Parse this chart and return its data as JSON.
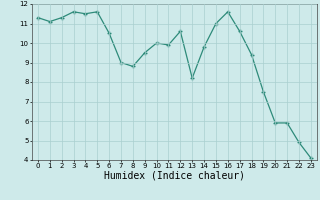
{
  "x": [
    0,
    1,
    2,
    3,
    4,
    5,
    6,
    7,
    8,
    9,
    10,
    11,
    12,
    13,
    14,
    15,
    16,
    17,
    18,
    19,
    20,
    21,
    22,
    23
  ],
  "y": [
    11.3,
    11.1,
    11.3,
    11.6,
    11.5,
    11.6,
    10.5,
    9.0,
    8.8,
    9.5,
    10.0,
    9.9,
    10.6,
    8.2,
    9.8,
    11.0,
    11.6,
    10.6,
    9.4,
    7.5,
    5.9,
    5.9,
    4.9,
    4.1
  ],
  "line_color": "#2e8b7a",
  "marker": "+",
  "marker_size": 3,
  "marker_lw": 1.0,
  "background_color": "#ceeaea",
  "grid_color": "#aacfcf",
  "xlabel": "Humidex (Indice chaleur)",
  "xlabel_fontsize": 7,
  "ylim": [
    4,
    12
  ],
  "xlim": [
    -0.5,
    23.5
  ],
  "yticks": [
    4,
    5,
    6,
    7,
    8,
    9,
    10,
    11,
    12
  ],
  "xticks": [
    0,
    1,
    2,
    3,
    4,
    5,
    6,
    7,
    8,
    9,
    10,
    11,
    12,
    13,
    14,
    15,
    16,
    17,
    18,
    19,
    20,
    21,
    22,
    23
  ],
  "tick_fontsize": 5,
  "linewidth": 0.9
}
